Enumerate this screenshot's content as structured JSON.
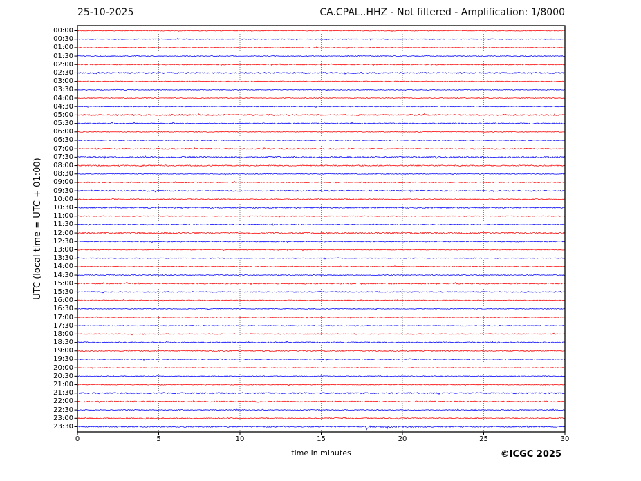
{
  "header": {
    "date_title": "25-10-2025",
    "plot_title": "CA.CPAL..HHZ - Not filtered - Amplification: 1/8000"
  },
  "footer": {
    "copyright": "©ICGC 2025"
  },
  "colors": {
    "hour_trace": "#ff0000",
    "half_hour_trace": "#0000ff",
    "grid": "#555555",
    "frame": "#000000",
    "background": "#ffffff"
  },
  "chart_data": {
    "type": "line",
    "variant": "helicorder-seismogram",
    "date": "25-10-2025",
    "title": "CA.CPAL..HHZ - Not filtered - Amplification: 1/8000",
    "xlabel": "time in minutes",
    "ylabel": "UTC (local time = UTC + 01:00)",
    "x_range": [
      0,
      30
    ],
    "x_ticks": [
      0,
      5,
      10,
      15,
      20,
      25,
      30
    ],
    "grid": {
      "vertical_dotted_every_minutes": 5,
      "horizontal": false
    },
    "legend": "none",
    "row_duration_minutes": 30,
    "rows": [
      {
        "label": "00:00",
        "color": "#ff0000",
        "amp": 0.55
      },
      {
        "label": "00:30",
        "color": "#0000ff",
        "amp": 0.6
      },
      {
        "label": "01:00",
        "color": "#ff0000",
        "amp": 0.55
      },
      {
        "label": "01:30",
        "color": "#0000ff",
        "amp": 0.6
      },
      {
        "label": "02:00",
        "color": "#ff0000",
        "amp": 0.75
      },
      {
        "label": "02:30",
        "color": "#0000ff",
        "amp": 0.95
      },
      {
        "label": "03:00",
        "color": "#ff0000",
        "amp": 0.6
      },
      {
        "label": "03:30",
        "color": "#0000ff",
        "amp": 0.55
      },
      {
        "label": "04:00",
        "color": "#ff0000",
        "amp": 0.55
      },
      {
        "label": "04:30",
        "color": "#0000ff",
        "amp": 0.6
      },
      {
        "label": "05:00",
        "color": "#ff0000",
        "amp": 0.95
      },
      {
        "label": "05:30",
        "color": "#0000ff",
        "amp": 0.75
      },
      {
        "label": "06:00",
        "color": "#ff0000",
        "amp": 0.55
      },
      {
        "label": "06:30",
        "color": "#0000ff",
        "amp": 0.6
      },
      {
        "label": "07:00",
        "color": "#ff0000",
        "amp": 0.8
      },
      {
        "label": "07:30",
        "color": "#0000ff",
        "amp": 0.95
      },
      {
        "label": "08:00",
        "color": "#ff0000",
        "amp": 0.8
      },
      {
        "label": "08:30",
        "color": "#0000ff",
        "amp": 0.55
      },
      {
        "label": "09:00",
        "color": "#ff0000",
        "amp": 0.7
      },
      {
        "label": "09:30",
        "color": "#0000ff",
        "amp": 0.85
      },
      {
        "label": "10:00",
        "color": "#ff0000",
        "amp": 0.75
      },
      {
        "label": "10:30",
        "color": "#0000ff",
        "amp": 0.85
      },
      {
        "label": "11:00",
        "color": "#ff0000",
        "amp": 0.6
      },
      {
        "label": "11:30",
        "color": "#0000ff",
        "amp": 0.6
      },
      {
        "label": "12:00",
        "color": "#ff0000",
        "amp": 1.0
      },
      {
        "label": "12:30",
        "color": "#0000ff",
        "amp": 0.7
      },
      {
        "label": "13:00",
        "color": "#ff0000",
        "amp": 0.6
      },
      {
        "label": "13:30",
        "color": "#0000ff",
        "amp": 0.55
      },
      {
        "label": "14:00",
        "color": "#ff0000",
        "amp": 0.55
      },
      {
        "label": "14:30",
        "color": "#0000ff",
        "amp": 0.6
      },
      {
        "label": "15:00",
        "color": "#ff0000",
        "amp": 0.85
      },
      {
        "label": "15:30",
        "color": "#0000ff",
        "amp": 0.75
      },
      {
        "label": "16:00",
        "color": "#ff0000",
        "amp": 0.6
      },
      {
        "label": "16:30",
        "color": "#0000ff",
        "amp": 0.55
      },
      {
        "label": "17:00",
        "color": "#ff0000",
        "amp": 0.55
      },
      {
        "label": "17:30",
        "color": "#0000ff",
        "amp": 0.6
      },
      {
        "label": "18:00",
        "color": "#ff0000",
        "amp": 0.6
      },
      {
        "label": "18:30",
        "color": "#0000ff",
        "amp": 0.8
      },
      {
        "label": "19:00",
        "color": "#ff0000",
        "amp": 0.75
      },
      {
        "label": "19:30",
        "color": "#0000ff",
        "amp": 0.6
      },
      {
        "label": "20:00",
        "color": "#ff0000",
        "amp": 0.55
      },
      {
        "label": "20:30",
        "color": "#0000ff",
        "amp": 0.6
      },
      {
        "label": "21:00",
        "color": "#ff0000",
        "amp": 0.6
      },
      {
        "label": "21:30",
        "color": "#0000ff",
        "amp": 0.95
      },
      {
        "label": "22:00",
        "color": "#ff0000",
        "amp": 0.85
      },
      {
        "label": "22:30",
        "color": "#0000ff",
        "amp": 0.6
      },
      {
        "label": "23:00",
        "color": "#ff0000",
        "amp": 0.75
      },
      {
        "label": "23:30",
        "color": "#0000ff",
        "amp": 0.8
      }
    ],
    "events": [
      {
        "row": "23:30",
        "minute": 17.8,
        "type": "spike",
        "description": "small downward spike followed by slightly elevated noise until ~23 min"
      }
    ]
  }
}
